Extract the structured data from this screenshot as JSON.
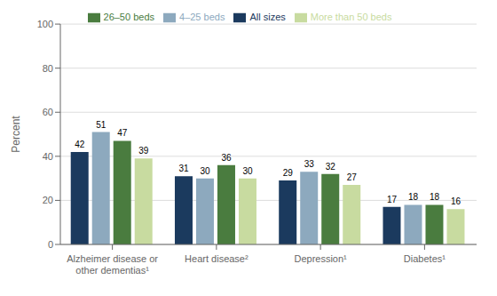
{
  "chart_data": {
    "type": "bar",
    "categories": [
      "Alzheimer disease or\nother dementias¹",
      "Heart disease²",
      "Depression¹",
      "Diabetes¹"
    ],
    "series": [
      {
        "name": "All sizes",
        "color": "#1b3a5e",
        "values": [
          42,
          31,
          29,
          17
        ]
      },
      {
        "name": "4–25 beds",
        "color": "#8da9be",
        "values": [
          51,
          30,
          33,
          18
        ]
      },
      {
        "name": "26–50 beds",
        "color": "#4a7c3f",
        "values": [
          47,
          36,
          32,
          18
        ]
      },
      {
        "name": "More than 50 beds",
        "color": "#c8dba0",
        "values": [
          39,
          30,
          27,
          16
        ]
      }
    ],
    "ylabel": "Percent",
    "ylim": [
      0,
      100
    ],
    "yticks": [
      0,
      20,
      40,
      60,
      80,
      100
    ],
    "grid": true,
    "legend": "top",
    "data_labels": true
  }
}
